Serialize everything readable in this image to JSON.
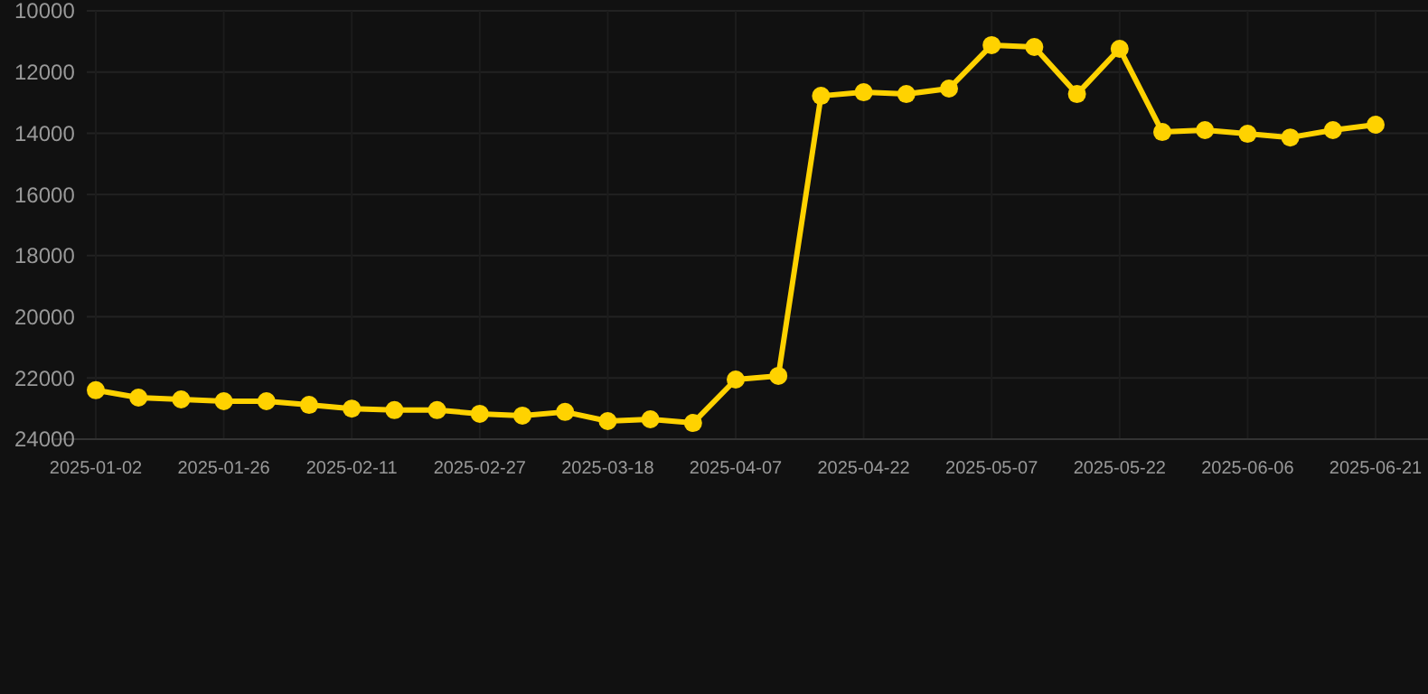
{
  "chart_data": {
    "type": "line",
    "categories": [
      "2025-01-02",
      null,
      null,
      "2025-01-26",
      null,
      null,
      "2025-02-11",
      null,
      null,
      "2025-02-27",
      null,
      null,
      "2025-03-18",
      null,
      null,
      "2025-04-07",
      null,
      null,
      "2025-04-22",
      null,
      null,
      "2025-05-07",
      null,
      null,
      "2025-05-22",
      null,
      null,
      "2025-06-06",
      null,
      null,
      "2025-06-21"
    ],
    "series": [
      {
        "color": "#ffd200",
        "values": [
          22400,
          22640,
          22700,
          22760,
          22760,
          22880,
          23000,
          23050,
          23050,
          23170,
          23230,
          23110,
          23410,
          23350,
          23470,
          22050,
          21930,
          12780,
          12660,
          12720,
          12540,
          11120,
          11180,
          12720,
          11240,
          13960,
          13900,
          14020,
          14140,
          13900,
          13720
        ]
      }
    ],
    "ylim": [
      24000,
      10000
    ],
    "yticks": [
      10000,
      12000,
      14000,
      16000,
      18000,
      20000,
      22000,
      24000
    ],
    "grid": true,
    "marker": "circle",
    "line_style": "solid"
  }
}
